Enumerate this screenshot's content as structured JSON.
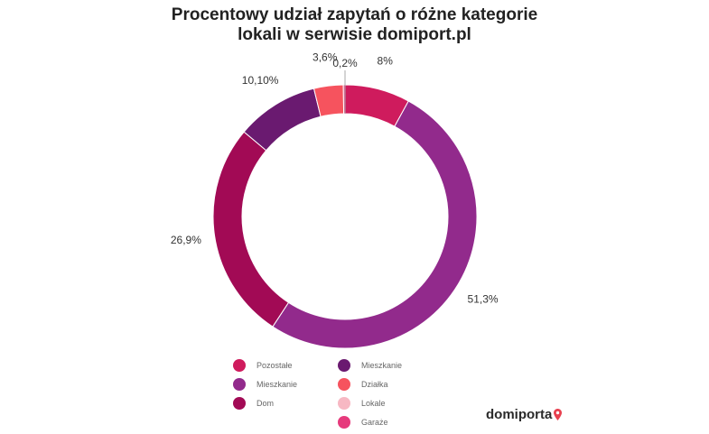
{
  "title_lines": [
    "Procentowy udział zapytań o różne kategorie",
    "lokali w serwisie domiport.pl"
  ],
  "chart_data": {
    "type": "pie",
    "variant": "donut",
    "title": "Procentowy udział zapytań o różne kategorie lokali w serwisie domiport.pl",
    "slices": [
      {
        "label": "Pozostałe",
        "value": 8.0,
        "display": "8%",
        "color": "#cf1b5d"
      },
      {
        "label": "Mieszkanie",
        "value": 51.3,
        "display": "51,3%",
        "color": "#922a8c"
      },
      {
        "label": "Dom",
        "value": 26.9,
        "display": "26,9%",
        "color": "#a20a55"
      },
      {
        "label": "Mieszkanie",
        "value": 10.1,
        "display": "10,10%",
        "color": "#6a1a70"
      },
      {
        "label": "Działka",
        "value": 3.6,
        "display": "3,6%",
        "color": "#f6535e"
      },
      {
        "label": "Lokale",
        "value": 0.0,
        "display": "",
        "color": "#f7b8c3"
      },
      {
        "label": "Garaże",
        "value": 0.2,
        "display": "0,2%",
        "color": "#e63a7c"
      }
    ],
    "legend_position": "bottom"
  },
  "legend_items": [
    {
      "label": "Pozostałe",
      "color": "#cf1b5d"
    },
    {
      "label": "Mieszkanie",
      "color": "#922a8c"
    },
    {
      "label": "Dom",
      "color": "#a20a55"
    },
    {
      "label": "Mieszkanie",
      "color": "#6a1a70"
    },
    {
      "label": "Działka",
      "color": "#f6535e"
    },
    {
      "label": "Lokale",
      "color": "#f7b8c3"
    },
    {
      "label": "Garaże",
      "color": "#e63a7c"
    }
  ],
  "logo": {
    "text": "domiporta",
    "pin_color": "#e8404f"
  }
}
